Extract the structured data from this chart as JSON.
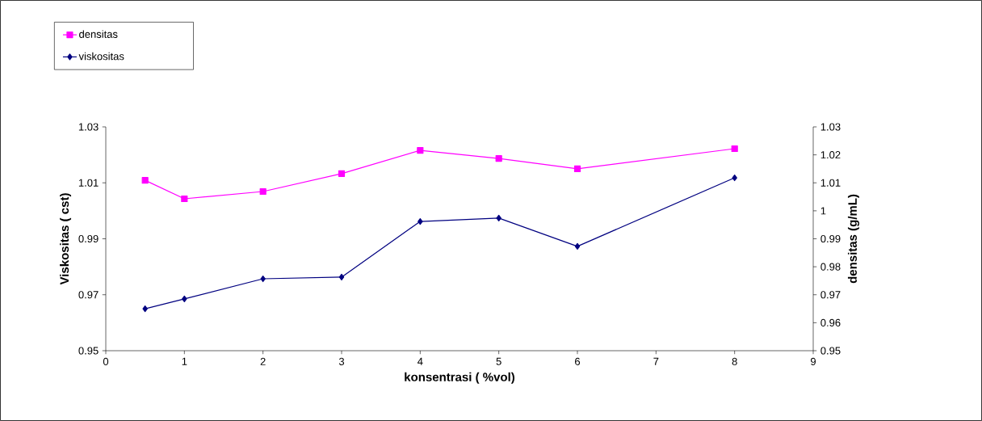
{
  "chart_data": {
    "type": "line",
    "xlabel": "konsentrasi ( %vol)",
    "ylabel": "Viskositas ( cst)",
    "y2label": "densitas (g/mL)",
    "x": [
      0.5,
      1,
      2,
      3,
      4,
      5,
      6,
      8
    ],
    "series": [
      {
        "name": "densitas",
        "color": "#ff00ff",
        "axis": "y2",
        "marker": "square",
        "values": [
          1.0109,
          1.0043,
          1.0069,
          1.0133,
          1.0216,
          1.0187,
          1.015,
          1.0222
        ]
      },
      {
        "name": "viskositas",
        "color": "#000080",
        "axis": "y",
        "marker": "diamond",
        "values": [
          0.965,
          0.9685,
          0.9757,
          0.9763,
          0.9962,
          0.9974,
          0.9873,
          1.0118
        ]
      }
    ],
    "xlim": [
      0,
      9
    ],
    "xticks": [
      0,
      1,
      2,
      3,
      4,
      5,
      6,
      7,
      8,
      9
    ],
    "ylim": [
      0.95,
      1.03
    ],
    "yticks": [
      0.95,
      0.97,
      0.99,
      1.01,
      1.03
    ],
    "y2lim": [
      0.95,
      1.03
    ],
    "y2ticks": [
      0.95,
      0.96,
      0.97,
      0.98,
      0.99,
      1,
      1.01,
      1.02,
      1.03
    ],
    "legend": "top left",
    "grid": false,
    "line_style": "solid"
  }
}
